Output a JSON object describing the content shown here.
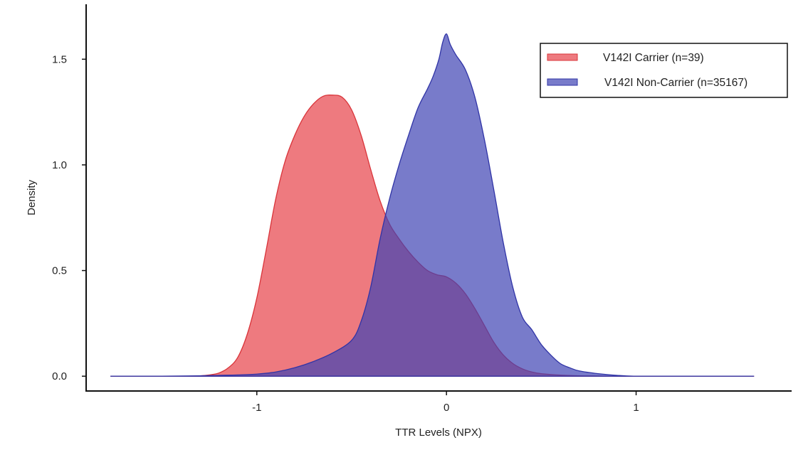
{
  "chart_data": {
    "type": "area",
    "title": "",
    "xlabel": "TTR Levels (NPX)",
    "ylabel": "Density",
    "xlim": [
      -1.9,
      1.82
    ],
    "ylim": [
      -0.07,
      1.76
    ],
    "grid": false,
    "legend_position": "top-right",
    "x_ticks": [
      {
        "value": -1,
        "label": "-1"
      },
      {
        "value": 0,
        "label": "0"
      },
      {
        "value": 1,
        "label": "1"
      }
    ],
    "y_ticks": [
      {
        "value": 0.0,
        "label": "0.0"
      },
      {
        "value": 0.5,
        "label": "0.5"
      },
      {
        "value": 1.0,
        "label": "1.0"
      },
      {
        "value": 1.5,
        "label": "1.5"
      }
    ],
    "series": [
      {
        "name": "V142I Carrier (n=39)",
        "fill": "#e8474d",
        "stroke": "#d9343a",
        "opacity": 0.72,
        "x": [
          -1.77,
          -1.4,
          -1.3,
          -1.25,
          -1.2,
          -1.15,
          -1.1,
          -1.05,
          -1.0,
          -0.95,
          -0.9,
          -0.85,
          -0.8,
          -0.75,
          -0.7,
          -0.65,
          -0.6,
          -0.55,
          -0.5,
          -0.45,
          -0.4,
          -0.35,
          -0.3,
          -0.25,
          -0.2,
          -0.15,
          -0.1,
          -0.05,
          0.0,
          0.05,
          0.1,
          0.15,
          0.2,
          0.25,
          0.3,
          0.35,
          0.4,
          0.45,
          0.5,
          0.6,
          0.7,
          0.8,
          0.9,
          1.0,
          1.2,
          1.4,
          1.62
        ],
        "y": [
          0.0,
          0.0,
          0.002,
          0.006,
          0.015,
          0.04,
          0.09,
          0.2,
          0.37,
          0.6,
          0.84,
          1.02,
          1.14,
          1.23,
          1.29,
          1.325,
          1.33,
          1.32,
          1.26,
          1.14,
          0.98,
          0.83,
          0.72,
          0.65,
          0.59,
          0.54,
          0.5,
          0.48,
          0.47,
          0.44,
          0.39,
          0.32,
          0.24,
          0.16,
          0.1,
          0.06,
          0.035,
          0.02,
          0.012,
          0.005,
          0.002,
          0.001,
          0.0,
          0.0,
          0.0,
          0.0,
          0.0
        ]
      },
      {
        "name": "V142I Non-Carrier (n=35167)",
        "fill": "#3f43b3",
        "stroke": "#3034a6",
        "opacity": 0.7,
        "x": [
          -1.77,
          -1.5,
          -1.3,
          -1.2,
          -1.1,
          -1.0,
          -0.9,
          -0.8,
          -0.7,
          -0.6,
          -0.5,
          -0.45,
          -0.4,
          -0.35,
          -0.3,
          -0.25,
          -0.2,
          -0.15,
          -0.1,
          -0.07,
          -0.04,
          -0.02,
          0.0,
          0.02,
          0.05,
          0.1,
          0.15,
          0.2,
          0.25,
          0.3,
          0.35,
          0.4,
          0.45,
          0.5,
          0.55,
          0.6,
          0.65,
          0.7,
          0.8,
          0.9,
          1.0,
          1.2,
          1.4,
          1.62
        ],
        "y": [
          0.0,
          0.0,
          0.002,
          0.004,
          0.006,
          0.01,
          0.02,
          0.04,
          0.07,
          0.11,
          0.17,
          0.26,
          0.42,
          0.65,
          0.84,
          1.0,
          1.14,
          1.27,
          1.36,
          1.42,
          1.5,
          1.58,
          1.62,
          1.57,
          1.52,
          1.45,
          1.32,
          1.12,
          0.88,
          0.63,
          0.42,
          0.28,
          0.22,
          0.15,
          0.1,
          0.06,
          0.04,
          0.025,
          0.012,
          0.004,
          0.0,
          0.0,
          0.0,
          0.0
        ]
      }
    ]
  }
}
